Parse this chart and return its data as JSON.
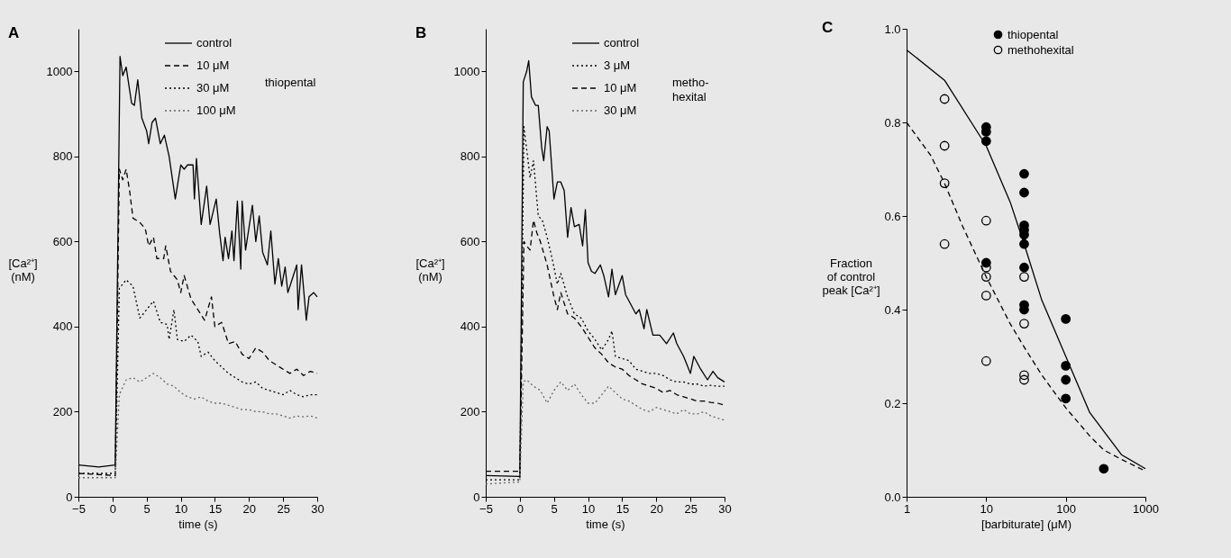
{
  "chart_data": [
    {
      "type": "line",
      "title": "A",
      "xlabel": "time (s)",
      "ylabel": "[Ca²⁺]\n(nM)",
      "xlim": [
        -5,
        30
      ],
      "xticks": [
        -5,
        0,
        5,
        10,
        15,
        20,
        25,
        30
      ],
      "ylim": [
        0,
        1100
      ],
      "yticks": [
        0,
        200,
        400,
        600,
        800,
        1000
      ],
      "grid": false,
      "legend": "top right",
      "marker": "none",
      "annotations": [
        "thiopental"
      ],
      "series": [
        {
          "name": "control",
          "color": "#000000",
          "line_style": "solid",
          "x": [
            -5,
            -2,
            0.4,
            1.1,
            1.5,
            2,
            2.8,
            3.2,
            3.7,
            4.3,
            5,
            5.3,
            5.8,
            6.3,
            7,
            7.6,
            8.3,
            9.2,
            10,
            10.5,
            11,
            11.8,
            12,
            12.3,
            13,
            13.8,
            14.3,
            15.2,
            15.7,
            16.2,
            16.5,
            17,
            17.5,
            17.8,
            18.3,
            18.8,
            19,
            19.5,
            20.5,
            21,
            21.5,
            22,
            22.7,
            23.2,
            23.8,
            24.3,
            24.8,
            25.3,
            25.7,
            26.5,
            27,
            27.2,
            27.7,
            28.4,
            28.8,
            29.5,
            30
          ],
          "values": [
            75,
            70,
            75,
            1035,
            990,
            1010,
            925,
            920,
            980,
            890,
            860,
            830,
            880,
            890,
            830,
            850,
            800,
            700,
            780,
            770,
            780,
            780,
            700,
            795,
            640,
            730,
            640,
            700,
            620,
            555,
            610,
            560,
            625,
            555,
            695,
            535,
            695,
            580,
            685,
            600,
            660,
            575,
            545,
            625,
            500,
            560,
            495,
            540,
            480,
            520,
            545,
            440,
            545,
            415,
            470,
            480,
            470
          ]
        },
        {
          "name": "10 μM",
          "color": "#000000",
          "line_style": "dashed",
          "x": [
            -5,
            0.4,
            1,
            1.5,
            2,
            2.5,
            3,
            4,
            4.8,
            5.3,
            6,
            6.5,
            7.5,
            7.8,
            8.5,
            9.5,
            10,
            10.5,
            11.5,
            12.5,
            13.5,
            14.5,
            15,
            16,
            17,
            18,
            19,
            20,
            21,
            22,
            23,
            24,
            25,
            26,
            27,
            28,
            29,
            30
          ],
          "values": [
            55,
            50,
            770,
            745,
            770,
            720,
            655,
            645,
            630,
            590,
            610,
            560,
            560,
            590,
            530,
            510,
            480,
            520,
            465,
            440,
            415,
            470,
            400,
            410,
            360,
            365,
            335,
            325,
            350,
            340,
            320,
            310,
            300,
            290,
            300,
            285,
            295,
            290
          ]
        },
        {
          "name": "30 μM",
          "color": "#000000",
          "line_style": "dotted",
          "x": [
            -5,
            0.4,
            1,
            2,
            3,
            4,
            5,
            6,
            7,
            8,
            8.3,
            9,
            9.5,
            10.5,
            11.5,
            12.5,
            13,
            14,
            15,
            16,
            17,
            18,
            19,
            20,
            21,
            22,
            23,
            24,
            25,
            26,
            27,
            28,
            29,
            30
          ],
          "values": [
            55,
            55,
            490,
            510,
            495,
            420,
            440,
            460,
            410,
            405,
            370,
            440,
            370,
            365,
            380,
            365,
            330,
            340,
            320,
            305,
            290,
            280,
            270,
            265,
            270,
            255,
            250,
            245,
            240,
            250,
            240,
            235,
            240,
            240
          ]
        },
        {
          "name": "100 μM",
          "color": "#666666",
          "line_style": "dotted",
          "x": [
            -5,
            0.4,
            1,
            2,
            3,
            4,
            5,
            6,
            7,
            8,
            9,
            10,
            11,
            12,
            13,
            14,
            15,
            16,
            17,
            18,
            19,
            20,
            21,
            22,
            23,
            24,
            25,
            26,
            27,
            28,
            29,
            30
          ],
          "values": [
            45,
            45,
            240,
            275,
            280,
            270,
            280,
            290,
            280,
            265,
            260,
            245,
            235,
            230,
            235,
            225,
            220,
            220,
            215,
            210,
            205,
            205,
            200,
            200,
            195,
            195,
            190,
            185,
            190,
            188,
            190,
            185
          ]
        }
      ]
    },
    {
      "type": "line",
      "title": "B",
      "xlabel": "time (s)",
      "ylabel": "[Ca²⁺]\n(nM)",
      "xlim": [
        -5,
        30
      ],
      "xticks": [
        -5,
        0,
        5,
        10,
        15,
        20,
        25,
        30
      ],
      "ylim": [
        0,
        1100
      ],
      "yticks": [
        0,
        200,
        400,
        600,
        800,
        1000
      ],
      "grid": false,
      "legend": "top right",
      "marker": "none",
      "annotations": [
        "metho-\nhexital"
      ],
      "series": [
        {
          "name": "control",
          "color": "#000000",
          "line_style": "solid",
          "x": [
            -5,
            0,
            0.5,
            1,
            1.3,
            1.7,
            2.3,
            2.7,
            3.2,
            3.5,
            4,
            4.3,
            5,
            5.5,
            6,
            6.5,
            7,
            7.5,
            8,
            8.7,
            9.2,
            9.6,
            10,
            10.5,
            11,
            11.8,
            12.3,
            13,
            13.5,
            14,
            15,
            15.5,
            16,
            17,
            17.5,
            18.2,
            18.6,
            19.5,
            20.5,
            21.5,
            22.5,
            23,
            24,
            25,
            25.5,
            26.5,
            27.5,
            28.3,
            29,
            30
          ],
          "values": [
            50,
            48,
            975,
            1000,
            1025,
            940,
            920,
            920,
            820,
            790,
            870,
            860,
            700,
            740,
            740,
            720,
            610,
            680,
            635,
            640,
            590,
            675,
            550,
            530,
            525,
            545,
            520,
            470,
            535,
            475,
            520,
            475,
            460,
            430,
            440,
            395,
            440,
            380,
            380,
            360,
            385,
            360,
            330,
            290,
            330,
            300,
            275,
            295,
            280,
            270
          ]
        },
        {
          "name": "3 μM",
          "color": "#000000",
          "line_style": "dotted",
          "x": [
            -5,
            0,
            0.6,
            1.5,
            2,
            2.7,
            3.3,
            4,
            4.8,
            5.5,
            6,
            7,
            8,
            9,
            10,
            11,
            12,
            13,
            13.5,
            14,
            15,
            16,
            17,
            18,
            19,
            20,
            21,
            22,
            23,
            24,
            25,
            26,
            27,
            28,
            29,
            30
          ],
          "values": [
            40,
            40,
            870,
            750,
            790,
            660,
            650,
            610,
            555,
            500,
            525,
            470,
            430,
            420,
            390,
            370,
            345,
            370,
            390,
            330,
            325,
            320,
            300,
            295,
            290,
            290,
            285,
            275,
            270,
            270,
            265,
            265,
            260,
            262,
            260,
            260
          ]
        },
        {
          "name": "10 μM",
          "color": "#000000",
          "line_style": "dashed",
          "x": [
            -5,
            0,
            0.6,
            1,
            1.5,
            2,
            2.5,
            3,
            4,
            5,
            5.5,
            6,
            7,
            8,
            9,
            10,
            11,
            12,
            13,
            14,
            15,
            16,
            17,
            18,
            19,
            20,
            21,
            22,
            23,
            24,
            25,
            26,
            27,
            28,
            29,
            30
          ],
          "values": [
            60,
            60,
            600,
            590,
            580,
            650,
            620,
            600,
            545,
            470,
            440,
            480,
            430,
            420,
            400,
            375,
            350,
            335,
            315,
            305,
            300,
            285,
            275,
            265,
            260,
            255,
            245,
            250,
            240,
            235,
            230,
            225,
            225,
            222,
            220,
            215
          ]
        },
        {
          "name": "30 μM",
          "color": "#666666",
          "line_style": "dotted",
          "x": [
            -5,
            0,
            0.5,
            1,
            2,
            3,
            4,
            5,
            6,
            7,
            8,
            9,
            10,
            11,
            12,
            13,
            14,
            15,
            16,
            17,
            18,
            19,
            20,
            21,
            22,
            23,
            24,
            25,
            26,
            27,
            28,
            29,
            30
          ],
          "values": [
            30,
            35,
            270,
            275,
            260,
            250,
            220,
            250,
            270,
            250,
            265,
            240,
            220,
            220,
            240,
            260,
            245,
            230,
            225,
            215,
            205,
            200,
            210,
            205,
            200,
            195,
            205,
            195,
            195,
            200,
            190,
            185,
            180
          ]
        }
      ]
    },
    {
      "type": "scatter",
      "title": "C",
      "xlabel": "[barbiturate]  (μM)",
      "ylabel": "Fraction\nof control\npeak [Ca²⁺]",
      "log": "x",
      "xlim": [
        1,
        1000
      ],
      "xticks": [
        1,
        10,
        100,
        1000
      ],
      "ylim": [
        0,
        1
      ],
      "yticks": [
        {
          "value": 0,
          "label": "0.0"
        },
        0.2,
        0.4,
        0.6,
        0.8,
        {
          "value": 1,
          "label": "1.0"
        }
      ],
      "grid": false,
      "legend": "top right",
      "series": [
        {
          "name": "thiopental",
          "color": "#000000",
          "marker": "circle",
          "x": [
            10,
            10,
            10,
            10,
            30,
            30,
            30,
            30,
            30,
            30,
            30,
            30,
            30,
            100,
            100,
            100,
            100,
            300
          ],
          "values": [
            0.79,
            0.78,
            0.76,
            0.5,
            0.69,
            0.65,
            0.58,
            0.57,
            0.56,
            0.54,
            0.49,
            0.41,
            0.4,
            0.38,
            0.28,
            0.25,
            0.21,
            0.06
          ]
        },
        {
          "name": "methohexital",
          "color": "#000000",
          "marker": "circle",
          "x": [
            3,
            3,
            3,
            3,
            10,
            10,
            10,
            10,
            10,
            30,
            30,
            30,
            30
          ],
          "values": [
            0.85,
            0.75,
            0.67,
            0.54,
            0.59,
            0.49,
            0.47,
            0.43,
            0.29,
            0.47,
            0.37,
            0.26,
            0.25
          ]
        },
        {
          "type": "line",
          "color": "#000000",
          "line_style": "solid",
          "x": [
            1,
            3,
            10,
            20,
            30,
            50,
            100,
            200,
            300,
            500,
            1000
          ],
          "values": [
            0.955,
            0.89,
            0.75,
            0.63,
            0.54,
            0.42,
            0.3,
            0.18,
            0.14,
            0.09,
            0.06
          ]
        },
        {
          "type": "line",
          "color": "#000000",
          "line_style": "dashed",
          "x": [
            1,
            2,
            3,
            5,
            10,
            20,
            30,
            50,
            100,
            200,
            300,
            500,
            1000
          ],
          "values": [
            0.8,
            0.73,
            0.67,
            0.58,
            0.47,
            0.37,
            0.32,
            0.26,
            0.19,
            0.13,
            0.1,
            0.08,
            0.055
          ]
        }
      ]
    }
  ]
}
